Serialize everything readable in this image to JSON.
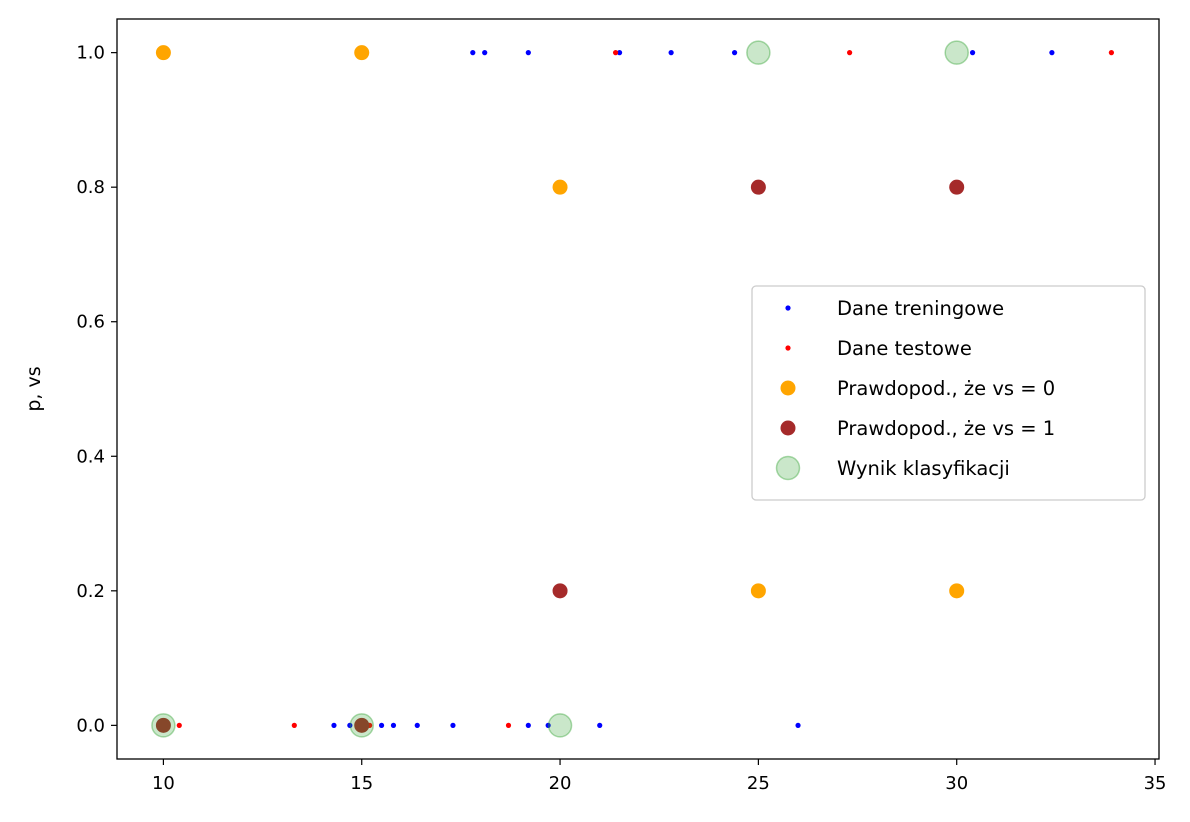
{
  "chart_data": {
    "type": "scatter",
    "title": "",
    "xlabel": "",
    "ylabel": "p, vs",
    "xlim": [
      8.83,
      35.1
    ],
    "ylim": [
      -0.05,
      1.05
    ],
    "xticks": [
      "10",
      "15",
      "20",
      "25",
      "30",
      "35"
    ],
    "yticks": [
      "0.0",
      "0.2",
      "0.4",
      "0.6",
      "0.8",
      "1.0"
    ],
    "grid": false,
    "legend_position": "center-right",
    "series": [
      {
        "name": "Dane treningowe",
        "color": "#0000ff",
        "marker_size": "small",
        "points": [
          [
            17.8,
            1
          ],
          [
            18.1,
            1
          ],
          [
            19.2,
            1
          ],
          [
            21.5,
            1
          ],
          [
            22.8,
            1
          ],
          [
            24.4,
            1
          ],
          [
            30.4,
            1
          ],
          [
            32.4,
            1
          ],
          [
            14.3,
            0
          ],
          [
            14.7,
            0
          ],
          [
            15.5,
            0
          ],
          [
            15.8,
            0
          ],
          [
            16.4,
            0
          ],
          [
            17.3,
            0
          ],
          [
            19.2,
            0
          ],
          [
            19.7,
            0
          ],
          [
            21.0,
            0
          ],
          [
            26.0,
            0
          ]
        ]
      },
      {
        "name": "Dane testowe",
        "color": "#ff0000",
        "marker_size": "small",
        "points": [
          [
            21.4,
            1
          ],
          [
            27.3,
            1
          ],
          [
            33.9,
            1
          ],
          [
            10.4,
            0
          ],
          [
            13.3,
            0
          ],
          [
            15.2,
            0
          ],
          [
            18.7,
            0
          ]
        ]
      },
      {
        "name": "Prawdopod., że vs = 0",
        "color": "#ffa500",
        "marker_size": "medium",
        "points": [
          [
            10,
            1.0
          ],
          [
            15,
            1.0
          ],
          [
            20,
            0.8
          ],
          [
            25,
            0.2
          ],
          [
            30,
            0.2
          ]
        ]
      },
      {
        "name": "Prawdopod., że vs = 1",
        "color": "#a52a2a",
        "marker_size": "medium",
        "points": [
          [
            10,
            0.0
          ],
          [
            15,
            0.0
          ],
          [
            20,
            0.2
          ],
          [
            25,
            0.8
          ],
          [
            30,
            0.8
          ]
        ]
      },
      {
        "name": "Wynik klasyfikacji",
        "color": "#2ca02c",
        "marker_size": "large",
        "alpha": 0.25,
        "points": [
          [
            10,
            0
          ],
          [
            15,
            0
          ],
          [
            20,
            0
          ],
          [
            25,
            1
          ],
          [
            30,
            1
          ]
        ]
      }
    ]
  }
}
